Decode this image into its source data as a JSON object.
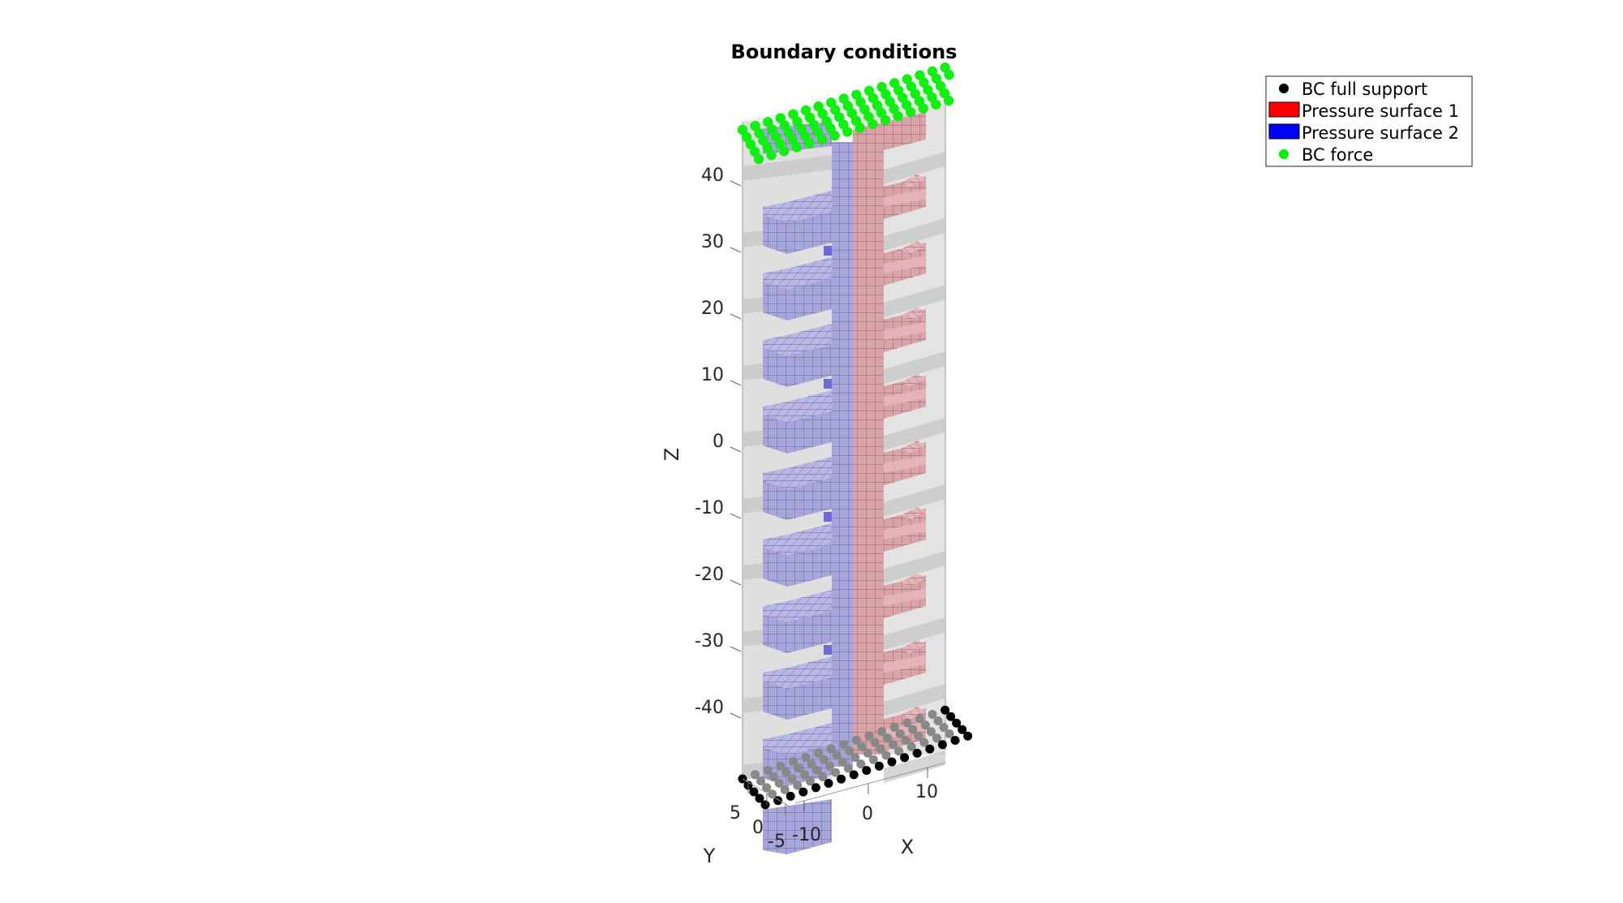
{
  "figure": {
    "title": "Boundary conditions",
    "axes": {
      "x": {
        "label": "X",
        "ticks": [
          "0",
          "10",
          "-10"
        ]
      },
      "y": {
        "label": "Y",
        "ticks": [
          "5",
          "0",
          "-5"
        ]
      },
      "z": {
        "label": "Z",
        "ticks": [
          "40",
          "30",
          "20",
          "10",
          "0",
          "-10",
          "-20",
          "-30",
          "-40"
        ]
      }
    },
    "legend": {
      "placement": "top-right",
      "entries": [
        {
          "label": "BC full support",
          "marker": "dot",
          "color": "#000000"
        },
        {
          "label": "Pressure surface 1",
          "marker": "patch",
          "color": "#ff0000"
        },
        {
          "label": "Pressure surface 2",
          "marker": "patch",
          "color": "#0000ff"
        },
        {
          "label": "BC force",
          "marker": "dot",
          "color": "#00ee00"
        }
      ]
    },
    "colors": {
      "pressure_surface_1_face": "#d9a3a8",
      "pressure_surface_2_face": "#a7a6dc",
      "bc_force": "#11ee11",
      "bc_full_support": "#000000",
      "support_shadow": "#888888",
      "mesh_gray": "#cfcfcf"
    }
  }
}
